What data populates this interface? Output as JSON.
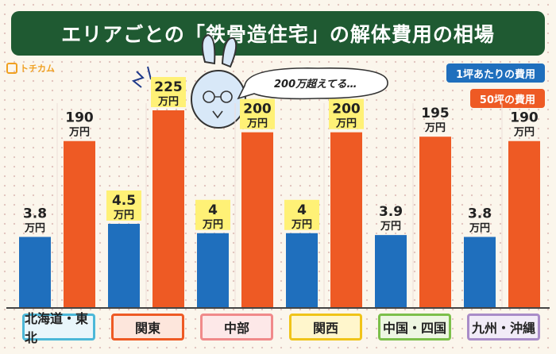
{
  "title": "エリアごとの「鉄骨造住宅」の解体費用の相場",
  "logo_text": "トチカム",
  "bubble_text": "200万超えてる…",
  "legend": [
    {
      "label": "1坪あたりの費用",
      "color": "#1f6fbd"
    },
    {
      "label": "50坪の費用",
      "color": "#ee5a24"
    }
  ],
  "chart_data": {
    "type": "bar",
    "unit": "万円",
    "categories": [
      "北海道・東北",
      "関東",
      "中部",
      "関西",
      "中国・四国",
      "九州・沖縄"
    ],
    "series": [
      {
        "name": "1坪あたりの費用",
        "color": "#1f6fbd",
        "values": [
          3.8,
          4.5,
          4,
          4,
          3.9,
          3.8
        ],
        "labels": [
          "3.8",
          "4.5",
          "4",
          "4",
          "3.9",
          "3.8"
        ]
      },
      {
        "name": "50坪の費用",
        "color": "#ee5a24",
        "values": [
          190,
          225,
          200,
          200,
          195,
          190
        ],
        "labels": [
          "190",
          "225",
          "200",
          "200",
          "195",
          "190"
        ]
      }
    ],
    "category_styles": [
      {
        "border": "#4cb8d8",
        "fill": "#e9f6fb"
      },
      {
        "border": "#ee5a24",
        "fill": "#fde6dc"
      },
      {
        "border": "#f08a8a",
        "fill": "#fde8e8"
      },
      {
        "border": "#f0c419",
        "fill": "#fff6cc"
      },
      {
        "border": "#7cbf4a",
        "fill": "#edf6e2"
      },
      {
        "border": "#a98cc8",
        "fill": "#f1ebf7"
      }
    ],
    "highlight_categories": [
      1,
      2,
      3
    ]
  }
}
